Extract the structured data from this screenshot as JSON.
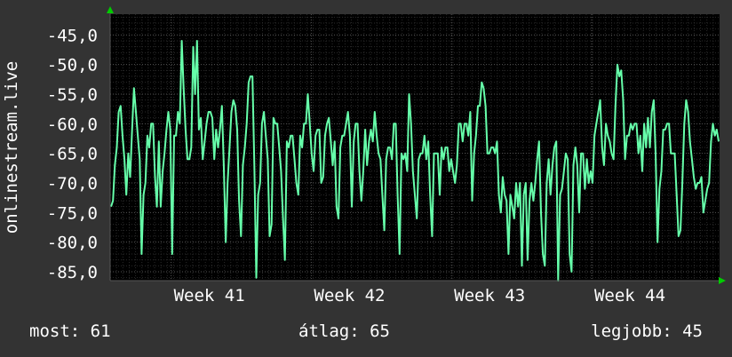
{
  "chart_data": {
    "type": "line",
    "ylabel": "onlinestream.live",
    "ylim": [
      -86.5,
      -41.5
    ],
    "y_ticks": [
      "-45,0",
      "-50,0",
      "-55,0",
      "-60,0",
      "-65,0",
      "-70,0",
      "-75,0",
      "-80,0",
      "-85,0"
    ],
    "y_tick_values": [
      -45,
      -50,
      -55,
      -60,
      -65,
      -70,
      -75,
      -80,
      -85
    ],
    "x_ticks": [
      "Week 41",
      "Week 42",
      "Week 43",
      "Week 44"
    ],
    "x_tick_positions": [
      0.1,
      0.33,
      0.56,
      0.79
    ],
    "grid": true,
    "colors": {
      "background": "#333333",
      "plot_background": "#000000",
      "line": "#66ffaa",
      "grid_minor": "#2a2a2a",
      "grid_major": "#555555",
      "axis_arrow": "#00cc00"
    },
    "series": [
      {
        "values": [
          -74,
          -73,
          -67,
          -64,
          -58,
          -57,
          -62,
          -66,
          -72,
          -65,
          -69,
          -61,
          -54,
          -58,
          -62,
          -66,
          -82,
          -72,
          -70,
          -62,
          -64,
          -60,
          -60,
          -69,
          -74,
          -63,
          -74,
          -68,
          -65,
          -61,
          -58,
          -61,
          -82,
          -62,
          -62,
          -58,
          -60,
          -46,
          -54,
          -61,
          -66,
          -66,
          -64,
          -47,
          -55,
          -46,
          -61,
          -59,
          -66,
          -63,
          -60,
          -58,
          -58,
          -59,
          -66,
          -61,
          -64,
          -61,
          -57,
          -67,
          -80,
          -70,
          -64,
          -58,
          -56,
          -57,
          -61,
          -73,
          -79,
          -67,
          -64,
          -60,
          -53,
          -52,
          -52,
          -67,
          -86,
          -72,
          -70,
          -60,
          -58,
          -62,
          -66,
          -79,
          -77,
          -59,
          -60,
          -60,
          -64,
          -68,
          -76,
          -83,
          -63,
          -64,
          -62,
          -62,
          -66,
          -70,
          -72,
          -62,
          -64,
          -60,
          -60,
          -55,
          -60,
          -65,
          -68,
          -62,
          -61,
          -61,
          -70,
          -69,
          -62,
          -60,
          -59,
          -63,
          -67,
          -63,
          -74,
          -76,
          -64,
          -62,
          -62,
          -60,
          -58,
          -62,
          -74,
          -63,
          -60,
          -60,
          -68,
          -73,
          -68,
          -61,
          -67,
          -63,
          -61,
          -63,
          -58,
          -62,
          -65,
          -66,
          -72,
          -78,
          -66,
          -64,
          -64,
          -66,
          -60,
          -60,
          -72,
          -82,
          -65,
          -66,
          -65,
          -68,
          -55,
          -60,
          -68,
          -72,
          -76,
          -66,
          -65,
          -65,
          -62,
          -66,
          -63,
          -72,
          -79,
          -65,
          -65,
          -65,
          -72,
          -64,
          -66,
          -64,
          -64,
          -68,
          -66,
          -68,
          -70,
          -67,
          -60,
          -60,
          -63,
          -60,
          -60,
          -62,
          -58,
          -73,
          -65,
          -62,
          -57,
          -57,
          -53,
          -54,
          -57,
          -65,
          -65,
          -64,
          -64,
          -65,
          -63,
          -72,
          -75,
          -69,
          -72,
          -73,
          -82,
          -72,
          -74,
          -76,
          -70,
          -74,
          -70,
          -84,
          -72,
          -70,
          -83,
          -73,
          -70,
          -73,
          -70,
          -66,
          -63,
          -75,
          -82,
          -84,
          -70,
          -66,
          -72,
          -67,
          -64,
          -63,
          -87,
          -72,
          -71,
          -68,
          -65,
          -66,
          -82,
          -85,
          -67,
          -64,
          -67,
          -75,
          -65,
          -65,
          -71,
          -66,
          -70,
          -68,
          -70,
          -62,
          -60,
          -58,
          -56,
          -64,
          -67,
          -60,
          -62,
          -63,
          -65,
          -66,
          -57,
          -50,
          -52,
          -51,
          -56,
          -66,
          -62,
          -62,
          -60,
          -61,
          -60,
          -60,
          -65,
          -62,
          -68,
          -60,
          -64,
          -59,
          -64,
          -58,
          -56,
          -65,
          -80,
          -71,
          -68,
          -61,
          -61,
          -60,
          -60,
          -65,
          -65,
          -65,
          -72,
          -79,
          -78,
          -70,
          -60,
          -56,
          -58,
          -63,
          -66,
          -69,
          -71,
          -70,
          -70,
          -69,
          -75,
          -73,
          -71,
          -70,
          -63,
          -60,
          -62,
          -61,
          -63
        ]
      }
    ]
  },
  "footer": {
    "now": "most: 61",
    "avg": "átlag: 65",
    "best": "legjobb: 45"
  }
}
